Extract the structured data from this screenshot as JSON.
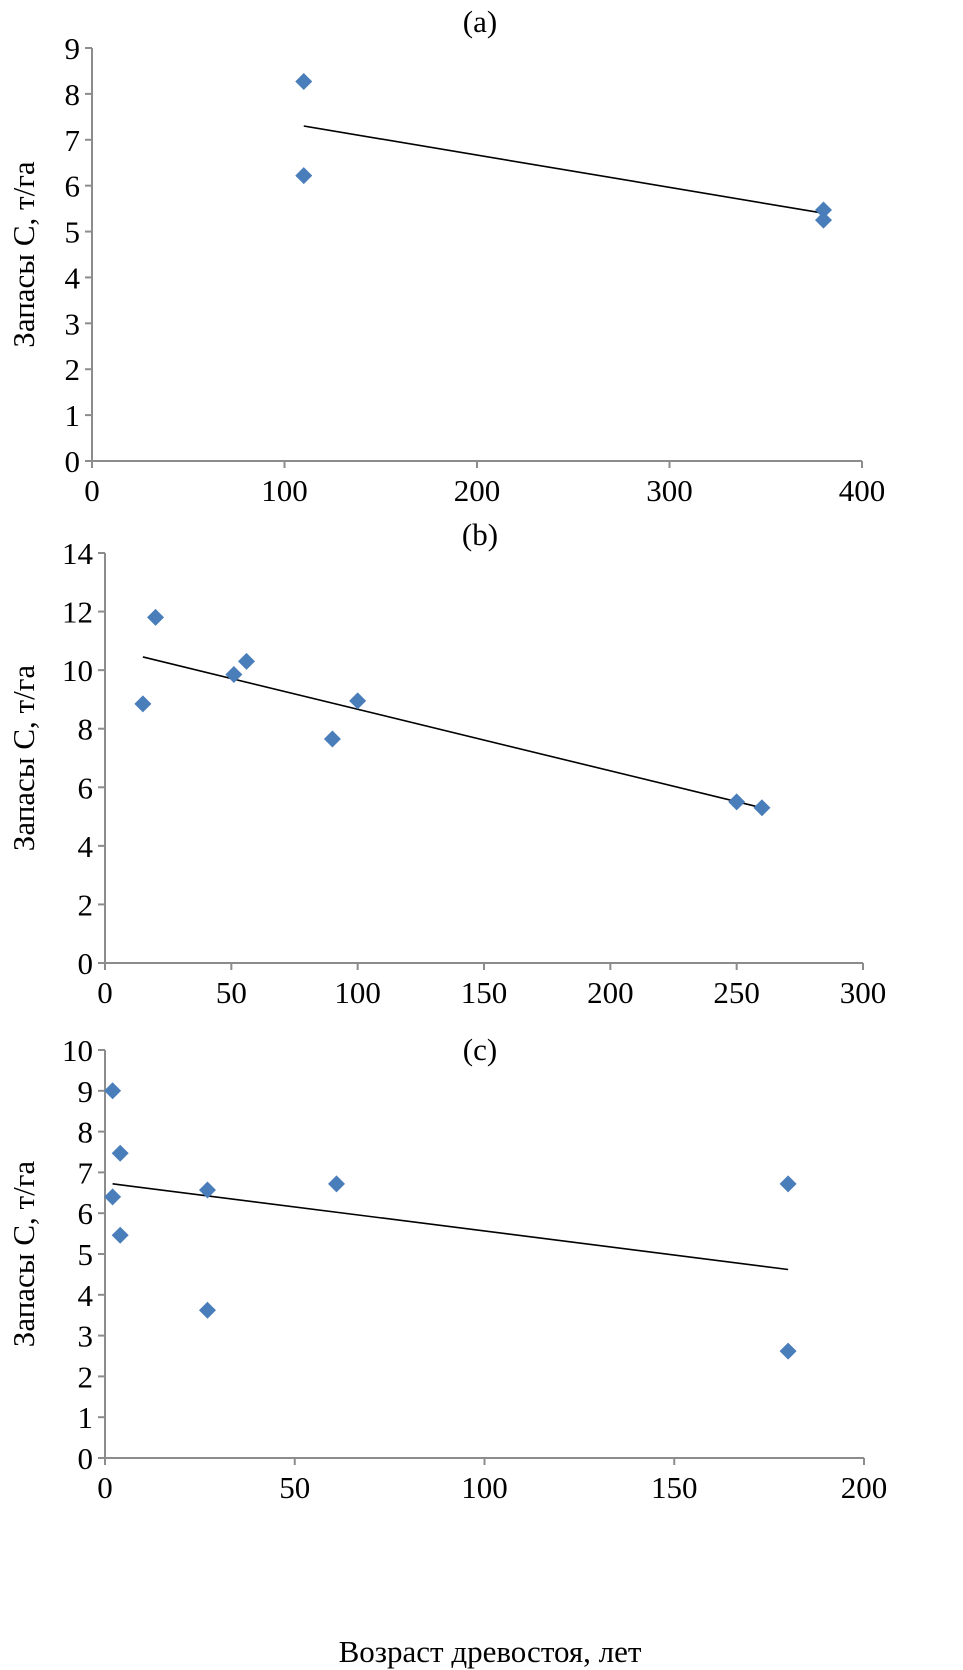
{
  "colors": {
    "marker": "#4a7ebb",
    "trendline": "#000000",
    "axis": "#8c8c8c"
  },
  "chart_data": [
    {
      "type": "scatter",
      "title": "(a)",
      "ylabel": "Запасы C, т/га",
      "xlabel": "",
      "xlim": [
        0,
        400
      ],
      "ylim": [
        0,
        9
      ],
      "xticks": [
        0,
        100,
        200,
        300,
        400
      ],
      "yticks": [
        0,
        1,
        2,
        3,
        4,
        5,
        6,
        7,
        8,
        9
      ],
      "grid": false,
      "points": [
        [
          110,
          8.27
        ],
        [
          110,
          6.22
        ],
        [
          380,
          5.47
        ],
        [
          380,
          5.25
        ]
      ],
      "trendline": [
        [
          110,
          7.3
        ],
        [
          380,
          5.4
        ]
      ]
    },
    {
      "type": "scatter",
      "title": "(b)",
      "ylabel": "Запасы C, т/га",
      "xlabel": "",
      "xlim": [
        0,
        300
      ],
      "ylim": [
        0,
        14
      ],
      "xticks": [
        0,
        50,
        100,
        150,
        200,
        250,
        300
      ],
      "yticks": [
        0,
        2,
        4,
        6,
        8,
        10,
        12,
        14
      ],
      "grid": false,
      "points": [
        [
          15,
          8.85
        ],
        [
          20,
          11.8
        ],
        [
          51,
          9.85
        ],
        [
          56,
          10.3
        ],
        [
          90,
          7.65
        ],
        [
          100,
          8.95
        ],
        [
          250,
          5.5
        ],
        [
          260,
          5.3
        ]
      ],
      "trendline": [
        [
          15,
          10.45
        ],
        [
          260,
          5.3
        ]
      ]
    },
    {
      "type": "scatter",
      "title": "(c)",
      "ylabel": "Запасы C, т/га",
      "xlabel": "Возраст древостоя, лет",
      "xlim": [
        0,
        200
      ],
      "ylim": [
        0,
        10
      ],
      "xticks": [
        0,
        50,
        100,
        150,
        200
      ],
      "yticks": [
        0,
        1,
        2,
        3,
        4,
        5,
        6,
        7,
        8,
        9,
        10
      ],
      "grid": false,
      "points": [
        [
          2,
          9.0
        ],
        [
          4,
          7.47
        ],
        [
          2,
          6.4
        ],
        [
          4,
          5.46
        ],
        [
          27,
          6.57
        ],
        [
          27,
          3.62
        ],
        [
          61,
          6.72
        ],
        [
          180,
          6.72
        ],
        [
          180,
          2.62
        ]
      ],
      "trendline": [
        [
          2,
          6.72
        ],
        [
          180,
          4.62
        ]
      ]
    }
  ]
}
